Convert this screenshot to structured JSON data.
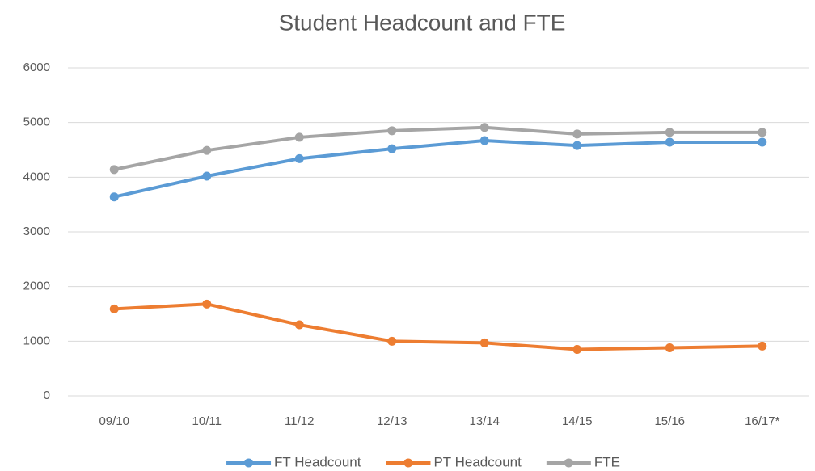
{
  "chart_data": {
    "type": "line",
    "title": "Student Headcount and FTE",
    "categories": [
      "09/10",
      "10/11",
      "11/12",
      "12/13",
      "13/14",
      "14/15",
      "15/16",
      "16/17*"
    ],
    "series": [
      {
        "name": "FT Headcount",
        "color": "#5b9bd5",
        "values": [
          3640,
          4020,
          4340,
          4520,
          4670,
          4580,
          4640,
          4640
        ]
      },
      {
        "name": "PT Headcount",
        "color": "#ed7d31",
        "values": [
          1590,
          1680,
          1300,
          1000,
          970,
          850,
          880,
          910
        ]
      },
      {
        "name": "FTE",
        "color": "#a5a5a5",
        "values": [
          4140,
          4490,
          4730,
          4850,
          4910,
          4790,
          4820,
          4820
        ]
      }
    ],
    "ylim": [
      0,
      6000
    ],
    "yticks": [
      0,
      1000,
      2000,
      3000,
      4000,
      5000,
      6000
    ],
    "grid": true,
    "legend": "bottom"
  }
}
